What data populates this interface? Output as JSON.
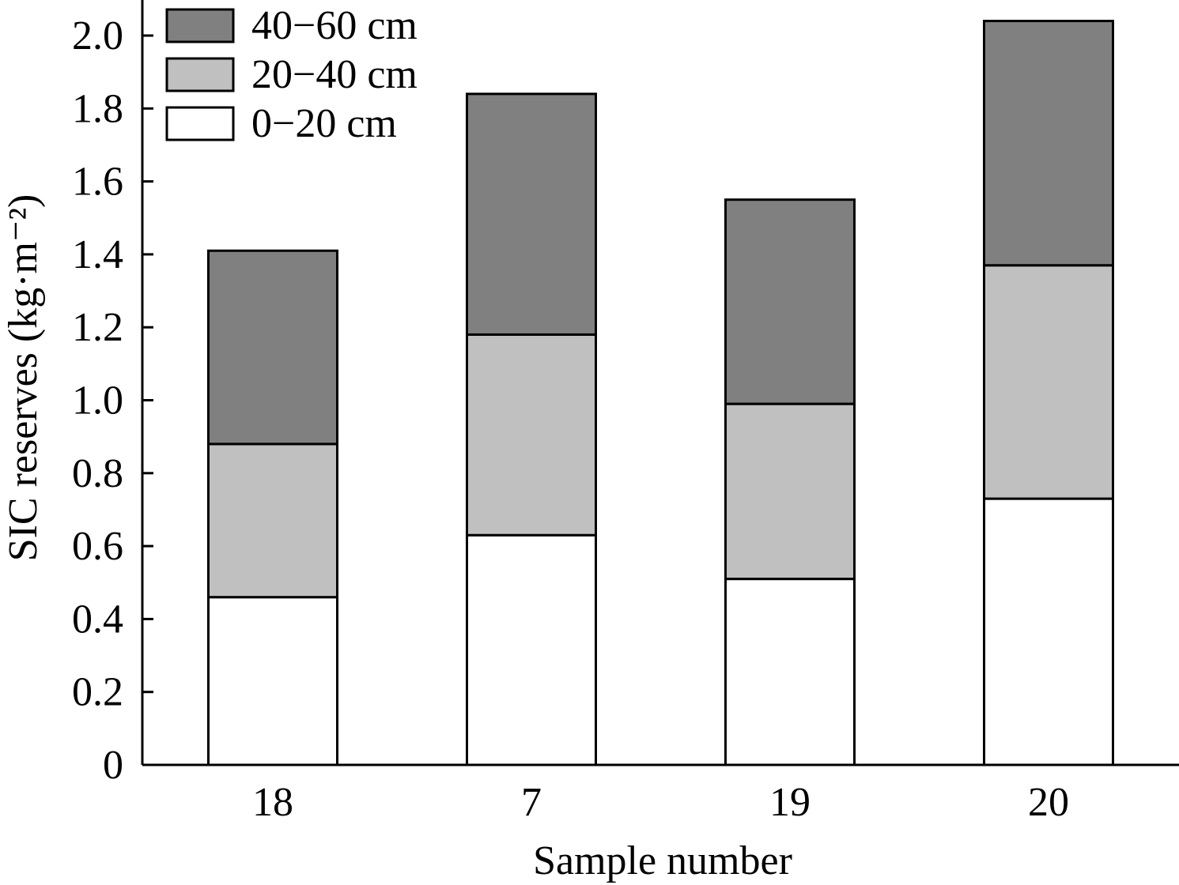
{
  "chart_data": {
    "type": "bar",
    "stacked": true,
    "categories": [
      "18",
      "7",
      "19",
      "20"
    ],
    "series": [
      {
        "name": "0−20 cm",
        "values": [
          0.46,
          0.63,
          0.51,
          0.73
        ],
        "color": "#ffffff"
      },
      {
        "name": "20−40 cm",
        "values": [
          0.42,
          0.55,
          0.48,
          0.64
        ],
        "color": "#c0c0c0"
      },
      {
        "name": "40−60 cm",
        "values": [
          0.53,
          0.66,
          0.56,
          0.67
        ],
        "color": "#808080"
      }
    ],
    "xlabel": "Sample number",
    "ylabel": "SIC reserves (kg·m⁻²)",
    "ylim": [
      0,
      2.0
    ],
    "yticks": [
      "0",
      "0.2",
      "0.4",
      "0.6",
      "0.8",
      "1.0",
      "1.2",
      "1.4",
      "1.6",
      "1.8",
      "2.0"
    ],
    "legend": {
      "position": "top-left",
      "entries": [
        "40−60 cm",
        "20−40 cm",
        "0−20 cm"
      ]
    },
    "grid": false
  }
}
